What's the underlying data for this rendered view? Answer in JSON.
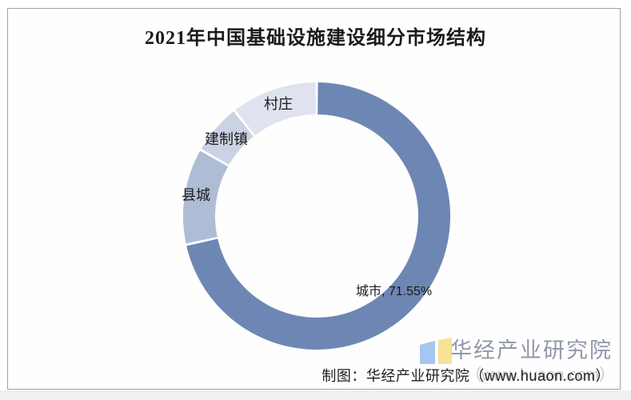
{
  "chart": {
    "title": "2021年中国基础设施建设细分市场结构",
    "city_callout": "城市, 71.55%"
  },
  "chart_data": {
    "type": "pie",
    "subtype": "donut",
    "title": "2021年中国基础设施建设细分市场结构",
    "direction": "clockwise",
    "start_angle_deg": 0,
    "donut_hole_ratio": 0.76,
    "legend": "none",
    "value_format": "percent",
    "slices": [
      {
        "id": "city",
        "label": "城市",
        "value": 71.55,
        "color": "#6d86b3"
      },
      {
        "id": "county",
        "label": "县城",
        "value": 11.7,
        "color": "#aebcd6"
      },
      {
        "id": "town",
        "label": "建制镇",
        "value": 6.2,
        "color": "#cad2e3"
      },
      {
        "id": "village",
        "label": "村庄",
        "value": 10.55,
        "color": "#dfe3ef"
      }
    ]
  },
  "watermark": {
    "brand_text": "华经产业研究院",
    "brand_url": "（www.huaon.com）",
    "logo_blue": "#a5c6ee",
    "logo_yellow": "#f6e394"
  },
  "footer": {
    "credit": "制图：华经产业研究院（www.huaon.com）"
  },
  "colors": {
    "frame_border": "#a2a2a2",
    "label_text": "#1a1a1a",
    "watermark_text": "#9098a8"
  }
}
